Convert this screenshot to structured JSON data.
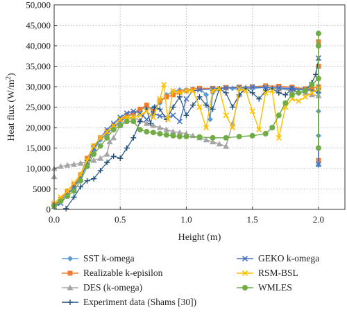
{
  "chart_data": {
    "type": "scatter",
    "xlabel": "Height (m)",
    "ylabel_main": "Heat flux (W/m",
    "ylabel_sup": "2",
    "ylabel_end": ")",
    "xlim": [
      0.0,
      2.2
    ],
    "ylim": [
      0,
      50000
    ],
    "xticks": [
      {
        "value": 0.0,
        "label": "0.0"
      },
      {
        "value": 0.5,
        "label": "0.5"
      },
      {
        "value": 1.0,
        "label": "1.0"
      },
      {
        "value": 1.5,
        "label": "1.5"
      },
      {
        "value": 2.0,
        "label": "2.0"
      }
    ],
    "yticks": [
      {
        "value": 0,
        "label": "0"
      },
      {
        "value": 5000,
        "label": "5000"
      },
      {
        "value": 10000,
        "label": "10,000"
      },
      {
        "value": 15000,
        "label": "15,000"
      },
      {
        "value": 20000,
        "label": "20,000"
      },
      {
        "value": 25000,
        "label": "25,000"
      },
      {
        "value": 30000,
        "label": "30,000"
      },
      {
        "value": 35000,
        "label": "35,000"
      },
      {
        "value": 40000,
        "label": "40,000"
      },
      {
        "value": 45000,
        "label": "45,000"
      },
      {
        "value": 50000,
        "label": "50,000"
      }
    ],
    "grid": "dotted",
    "legend_position": "bottom",
    "series": [
      {
        "name": "SST k-omega",
        "color": "#5b9bd5",
        "marker": "diamond",
        "points": [
          [
            0.0,
            900
          ],
          [
            0.05,
            2200
          ],
          [
            0.1,
            3800
          ],
          [
            0.15,
            5500
          ],
          [
            0.2,
            8000
          ],
          [
            0.25,
            11000
          ],
          [
            0.3,
            14500
          ],
          [
            0.35,
            17000
          ],
          [
            0.4,
            18500
          ],
          [
            0.45,
            20000
          ],
          [
            0.5,
            21500
          ],
          [
            0.55,
            22500
          ],
          [
            0.6,
            23500
          ],
          [
            0.65,
            24500
          ],
          [
            0.7,
            25000
          ],
          [
            0.75,
            24800
          ],
          [
            0.8,
            26000
          ],
          [
            0.85,
            28000
          ],
          [
            0.9,
            28800
          ],
          [
            0.95,
            29200
          ],
          [
            1.0,
            29200
          ],
          [
            1.05,
            29400
          ],
          [
            1.1,
            29600
          ],
          [
            1.15,
            28000
          ],
          [
            1.18,
            22000
          ],
          [
            1.2,
            28500
          ],
          [
            1.25,
            29500
          ],
          [
            1.3,
            29700
          ],
          [
            1.35,
            29600
          ],
          [
            1.4,
            29400
          ],
          [
            1.5,
            29600
          ],
          [
            1.6,
            29800
          ],
          [
            1.7,
            29600
          ],
          [
            1.8,
            29300
          ],
          [
            1.9,
            29200
          ],
          [
            1.95,
            29000
          ],
          [
            2.0,
            28500
          ],
          [
            2.0,
            24000
          ],
          [
            2.0,
            18000
          ],
          [
            2.0,
            10800
          ]
        ]
      },
      {
        "name": "Realizable k-episilon",
        "color": "#ed7d31",
        "marker": "square",
        "points": [
          [
            0.0,
            1100
          ],
          [
            0.05,
            2500
          ],
          [
            0.1,
            4500
          ],
          [
            0.15,
            6000
          ],
          [
            0.2,
            8500
          ],
          [
            0.25,
            12500
          ],
          [
            0.3,
            15500
          ],
          [
            0.35,
            17500
          ],
          [
            0.4,
            19000
          ],
          [
            0.45,
            20500
          ],
          [
            0.5,
            22000
          ],
          [
            0.55,
            23000
          ],
          [
            0.6,
            23500
          ],
          [
            0.65,
            24500
          ],
          [
            0.7,
            25500
          ],
          [
            0.75,
            24000
          ],
          [
            0.8,
            26500
          ],
          [
            0.85,
            27500
          ],
          [
            0.9,
            28000
          ],
          [
            0.95,
            28700
          ],
          [
            1.0,
            29000
          ],
          [
            1.05,
            29300
          ],
          [
            1.1,
            29600
          ],
          [
            1.2,
            29600
          ],
          [
            1.3,
            29800
          ],
          [
            1.4,
            29900
          ],
          [
            1.5,
            30000
          ],
          [
            1.6,
            30200
          ],
          [
            1.7,
            30100
          ],
          [
            1.8,
            29900
          ],
          [
            1.9,
            29500
          ],
          [
            1.95,
            29600
          ],
          [
            2.0,
            30000
          ],
          [
            2.0,
            35000
          ],
          [
            2.0,
            41000
          ],
          [
            2.0,
            12000
          ]
        ]
      },
      {
        "name": "DES (k-omega)",
        "color": "#a5a5a5",
        "marker": "triangle",
        "points": [
          [
            0.0,
            8000
          ],
          [
            0.0,
            10000
          ],
          [
            0.05,
            10500
          ],
          [
            0.1,
            10800
          ],
          [
            0.15,
            11000
          ],
          [
            0.2,
            11300
          ],
          [
            0.25,
            11600
          ],
          [
            0.3,
            12000
          ],
          [
            0.35,
            12500
          ],
          [
            0.4,
            13500
          ],
          [
            0.42,
            16500
          ],
          [
            0.45,
            17500
          ],
          [
            0.5,
            20500
          ],
          [
            0.55,
            22000
          ],
          [
            0.6,
            22500
          ],
          [
            0.65,
            21800
          ],
          [
            0.7,
            21000
          ],
          [
            0.75,
            20500
          ],
          [
            0.8,
            20000
          ],
          [
            0.85,
            19500
          ],
          [
            0.9,
            19000
          ],
          [
            0.95,
            18800
          ],
          [
            1.0,
            18500
          ],
          [
            1.05,
            18000
          ],
          [
            1.1,
            17500
          ],
          [
            1.15,
            17000
          ],
          [
            1.2,
            16500
          ],
          [
            1.25,
            16000
          ],
          [
            1.3,
            15400
          ],
          [
            1.35,
            21000
          ],
          [
            1.4,
            28000
          ],
          [
            1.45,
            29800
          ],
          [
            1.5,
            30000
          ],
          [
            1.6,
            29800
          ],
          [
            1.7,
            29500
          ],
          [
            1.8,
            29000
          ],
          [
            1.9,
            28500
          ],
          [
            1.95,
            28000
          ],
          [
            2.0,
            27800
          ]
        ]
      },
      {
        "name": "Experiment data (Shams [30])",
        "color": "#1f4e79",
        "marker": "plus",
        "points": [
          [
            0.09,
            200
          ],
          [
            0.15,
            3000
          ],
          [
            0.2,
            5500
          ],
          [
            0.25,
            7000
          ],
          [
            0.3,
            7500
          ],
          [
            0.35,
            9500
          ],
          [
            0.4,
            11500
          ],
          [
            0.45,
            13000
          ],
          [
            0.5,
            12500
          ],
          [
            0.55,
            15000
          ],
          [
            0.6,
            17500
          ],
          [
            0.65,
            21500
          ],
          [
            0.7,
            24500
          ],
          [
            0.73,
            21000
          ],
          [
            0.76,
            25000
          ],
          [
            0.8,
            24500
          ],
          [
            0.85,
            22000
          ],
          [
            0.9,
            25000
          ],
          [
            0.95,
            27500
          ],
          [
            1.0,
            23000
          ],
          [
            1.05,
            25500
          ],
          [
            1.1,
            27500
          ],
          [
            1.15,
            25500
          ],
          [
            1.2,
            24500
          ],
          [
            1.25,
            29500
          ],
          [
            1.3,
            28500
          ],
          [
            1.35,
            25000
          ],
          [
            1.4,
            28000
          ],
          [
            1.45,
            29500
          ],
          [
            1.5,
            28500
          ],
          [
            1.55,
            27000
          ],
          [
            1.6,
            29000
          ],
          [
            1.65,
            29500
          ],
          [
            1.7,
            28500
          ],
          [
            1.75,
            28000
          ],
          [
            1.8,
            29500
          ],
          [
            1.85,
            28500
          ],
          [
            1.9,
            29000
          ],
          [
            1.95,
            31000
          ],
          [
            1.98,
            33000
          ],
          [
            2.0,
            36500
          ]
        ]
      },
      {
        "name": "GEKO k-omega",
        "color": "#4472c4",
        "marker": "x",
        "points": [
          [
            0.0,
            700
          ],
          [
            0.05,
            1500
          ],
          [
            0.1,
            3500
          ],
          [
            0.15,
            5500
          ],
          [
            0.2,
            7500
          ],
          [
            0.25,
            11500
          ],
          [
            0.3,
            15000
          ],
          [
            0.35,
            17500
          ],
          [
            0.4,
            19500
          ],
          [
            0.45,
            21000
          ],
          [
            0.5,
            22500
          ],
          [
            0.55,
            23500
          ],
          [
            0.6,
            24000
          ],
          [
            0.65,
            23500
          ],
          [
            0.7,
            22000
          ],
          [
            0.75,
            23500
          ],
          [
            0.8,
            22800
          ],
          [
            0.85,
            22500
          ],
          [
            0.9,
            23000
          ],
          [
            0.95,
            21500
          ],
          [
            1.0,
            27000
          ],
          [
            1.05,
            29000
          ],
          [
            1.1,
            29200
          ],
          [
            1.2,
            29500
          ],
          [
            1.3,
            29700
          ],
          [
            1.4,
            29800
          ],
          [
            1.5,
            29900
          ],
          [
            1.6,
            29800
          ],
          [
            1.7,
            29700
          ],
          [
            1.8,
            29600
          ],
          [
            1.9,
            29300
          ],
          [
            2.0,
            29000
          ],
          [
            2.0,
            37000
          ],
          [
            2.0,
            11000
          ]
        ]
      },
      {
        "name": "RSM-BSL",
        "color": "#ffc000",
        "marker": "x",
        "points": [
          [
            0.0,
            1500
          ],
          [
            0.05,
            3000
          ],
          [
            0.1,
            4500
          ],
          [
            0.15,
            6500
          ],
          [
            0.2,
            8500
          ],
          [
            0.25,
            12000
          ],
          [
            0.3,
            15500
          ],
          [
            0.35,
            17500
          ],
          [
            0.4,
            19000
          ],
          [
            0.45,
            20500
          ],
          [
            0.5,
            22000
          ],
          [
            0.55,
            22500
          ],
          [
            0.6,
            22500
          ],
          [
            0.65,
            23000
          ],
          [
            0.7,
            24000
          ],
          [
            0.75,
            22500
          ],
          [
            0.8,
            27000
          ],
          [
            0.83,
            30500
          ],
          [
            0.86,
            22000
          ],
          [
            0.9,
            29000
          ],
          [
            0.95,
            28500
          ],
          [
            1.0,
            29000
          ],
          [
            1.05,
            29000
          ],
          [
            1.1,
            25000
          ],
          [
            1.15,
            20000
          ],
          [
            1.2,
            29000
          ],
          [
            1.25,
            29500
          ],
          [
            1.3,
            23000
          ],
          [
            1.35,
            20000
          ],
          [
            1.4,
            29500
          ],
          [
            1.45,
            29000
          ],
          [
            1.5,
            24000
          ],
          [
            1.55,
            19500
          ],
          [
            1.6,
            28500
          ],
          [
            1.65,
            29000
          ],
          [
            1.7,
            17500
          ],
          [
            1.75,
            25000
          ],
          [
            1.8,
            27000
          ],
          [
            1.85,
            26500
          ],
          [
            1.9,
            27500
          ],
          [
            1.95,
            28500
          ],
          [
            2.0,
            29500
          ]
        ]
      },
      {
        "name": "WMLES",
        "color": "#70ad47",
        "marker": "circle",
        "points": [
          [
            0.0,
            800
          ],
          [
            0.05,
            2000
          ],
          [
            0.1,
            3200
          ],
          [
            0.15,
            4500
          ],
          [
            0.2,
            7000
          ],
          [
            0.25,
            10500
          ],
          [
            0.3,
            13500
          ],
          [
            0.35,
            15500
          ],
          [
            0.4,
            17500
          ],
          [
            0.45,
            19500
          ],
          [
            0.5,
            20500
          ],
          [
            0.55,
            21500
          ],
          [
            0.6,
            21500
          ],
          [
            0.65,
            19500
          ],
          [
            0.7,
            19000
          ],
          [
            0.75,
            18800
          ],
          [
            0.8,
            18500
          ],
          [
            0.85,
            18200
          ],
          [
            0.9,
            18000
          ],
          [
            0.95,
            17800
          ],
          [
            1.0,
            17800
          ],
          [
            1.1,
            17700
          ],
          [
            1.2,
            17500
          ],
          [
            1.3,
            17500
          ],
          [
            1.4,
            17800
          ],
          [
            1.5,
            18000
          ],
          [
            1.6,
            18500
          ],
          [
            1.65,
            20000
          ],
          [
            1.7,
            23000
          ],
          [
            1.75,
            26000
          ],
          [
            1.8,
            28000
          ],
          [
            1.85,
            28500
          ],
          [
            1.9,
            29000
          ],
          [
            1.95,
            30500
          ],
          [
            2.0,
            32000
          ],
          [
            2.0,
            40000
          ],
          [
            2.0,
            43000
          ],
          [
            2.0,
            15000
          ]
        ]
      }
    ]
  }
}
